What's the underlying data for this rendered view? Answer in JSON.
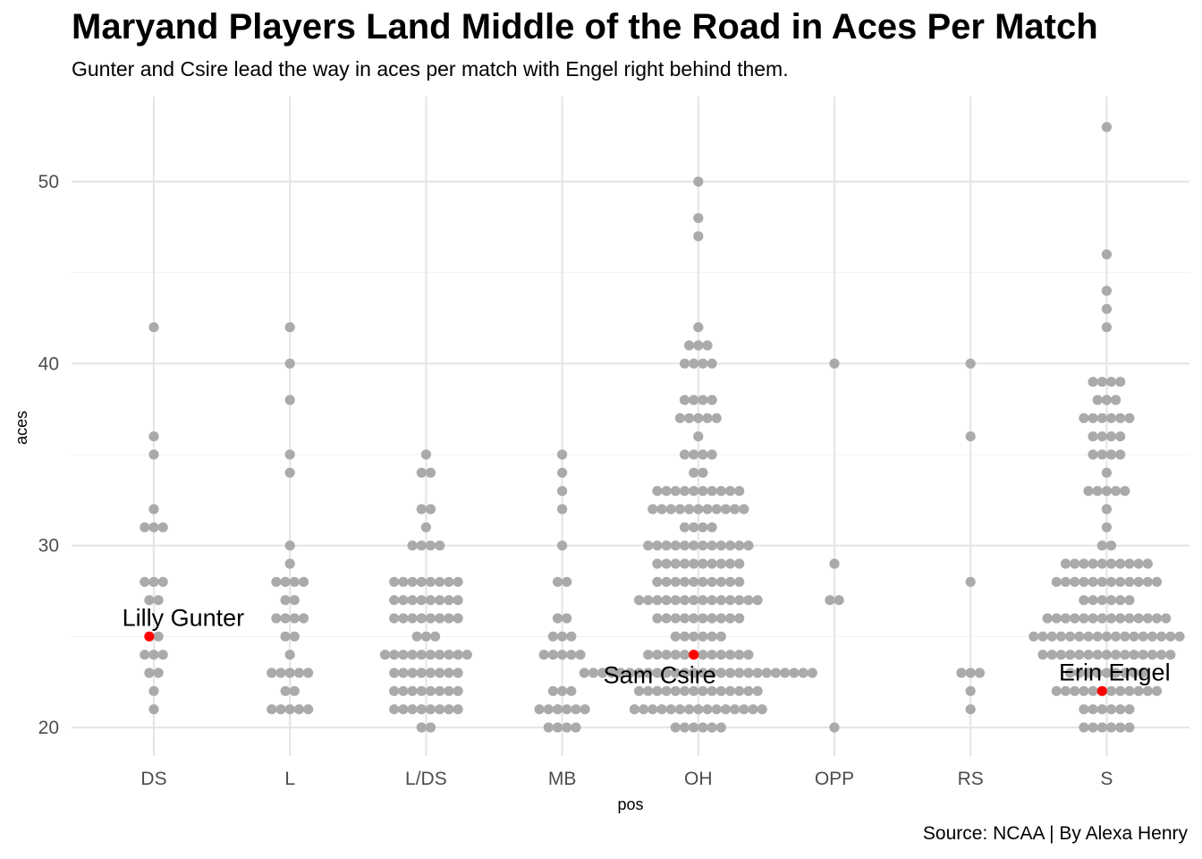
{
  "title": "Maryand Players Land Middle of the Road in Aces Per Match",
  "subtitle": "Gunter and Csire lead the way in aces per match with Engel right behind them.",
  "caption": "Source: NCAA | By Alexa Henry",
  "chart_data": {
    "type": "scatter",
    "xlabel": "pos",
    "ylabel": "aces",
    "categories": [
      "DS",
      "L",
      "L/DS",
      "MB",
      "OH",
      "OPP",
      "RS",
      "S"
    ],
    "ylim": [
      18.5,
      54.5
    ],
    "yticks": [
      20,
      30,
      40,
      50
    ],
    "grid": true,
    "point_color": "#aaaaaa",
    "highlight_color": "#ff0000",
    "counts": {
      "DS": {
        "42": 1,
        "36": 1,
        "35": 1,
        "32": 1,
        "31": 3,
        "28": 3,
        "27": 2,
        "25": 2,
        "24": 3,
        "23": 2,
        "22": 1,
        "21": 1
      },
      "L": {
        "42": 1,
        "40": 1,
        "38": 1,
        "35": 1,
        "34": 1,
        "30": 1,
        "29": 1,
        "28": 4,
        "27": 2,
        "26": 4,
        "25": 2,
        "24": 1,
        "23": 5,
        "22": 2,
        "21": 5
      },
      "L/DS": {
        "35": 1,
        "34": 2,
        "32": 2,
        "31": 1,
        "30": 4,
        "28": 8,
        "27": 8,
        "26": 8,
        "25": 3,
        "24": 10,
        "23": 8,
        "22": 8,
        "21": 8,
        "20": 2
      },
      "MB": {
        "35": 1,
        "34": 1,
        "33": 1,
        "32": 1,
        "30": 1,
        "28": 2,
        "26": 2,
        "25": 3,
        "24": 5,
        "22": 3,
        "21": 6,
        "20": 4
      },
      "OH": {
        "50": 1,
        "48": 1,
        "47": 1,
        "42": 1,
        "41": 3,
        "40": 4,
        "38": 4,
        "37": 5,
        "36": 1,
        "35": 4,
        "34": 2,
        "33": 10,
        "32": 11,
        "31": 4,
        "30": 12,
        "29": 10,
        "28": 10,
        "27": 14,
        "26": 10,
        "25": 6,
        "24": 12,
        "23": 26,
        "22": 14,
        "21": 15,
        "20": 6
      },
      "OPP": {
        "40": 1,
        "29": 1,
        "27": 2,
        "20": 1
      },
      "RS": {
        "40": 1,
        "36": 1,
        "28": 1,
        "23": 3,
        "22": 1,
        "21": 1
      },
      "S": {
        "53": 1,
        "46": 1,
        "44": 1,
        "43": 1,
        "42": 1,
        "39": 4,
        "38": 3,
        "37": 6,
        "36": 4,
        "35": 4,
        "34": 1,
        "33": 5,
        "32": 1,
        "31": 1,
        "30": 2,
        "29": 10,
        "28": 12,
        "27": 6,
        "26": 14,
        "25": 17,
        "24": 15,
        "23": 9,
        "22": 12,
        "21": 6,
        "20": 6
      }
    },
    "highlights": [
      {
        "name": "Lilly Gunter",
        "pos": "DS",
        "aces": 25
      },
      {
        "name": "Sam Csire",
        "pos": "OH",
        "aces": 24
      },
      {
        "name": "Erin Engel",
        "pos": "S",
        "aces": 22
      }
    ]
  }
}
